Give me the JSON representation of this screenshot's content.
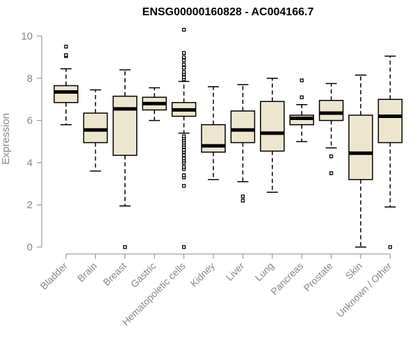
{
  "chart_data": {
    "type": "box",
    "title": "ENSG00000160828 - AC004166.7",
    "xlabel": "",
    "ylabel": "Expression",
    "ylim": [
      0,
      10
    ],
    "yticks": [
      0,
      2,
      4,
      6,
      8,
      10
    ],
    "grid": false,
    "colors": {
      "box_fill": "#ede6cf",
      "stroke": "#000000",
      "axis": "#888888"
    },
    "categories": [
      "Bladder",
      "Brain",
      "Breast",
      "Gastric",
      "Hematopoietic cells",
      "Kidney",
      "Liver",
      "Lung",
      "Pancreas",
      "Prostate",
      "Skin",
      "Unknown / Other"
    ],
    "boxes": [
      {
        "category": "Bladder",
        "whisker_low": 5.8,
        "q1": 6.85,
        "median": 7.35,
        "q3": 7.65,
        "whisker_high": 8.45,
        "outliers": [
          9.05,
          9.1,
          9.5
        ]
      },
      {
        "category": "Brain",
        "whisker_low": 3.6,
        "q1": 4.95,
        "median": 5.55,
        "q3": 6.35,
        "whisker_high": 7.45,
        "outliers": []
      },
      {
        "category": "Breast",
        "whisker_low": 1.95,
        "q1": 4.35,
        "median": 6.55,
        "q3": 7.15,
        "whisker_high": 8.4,
        "outliers": [
          0
        ]
      },
      {
        "category": "Gastric",
        "whisker_low": 6.0,
        "q1": 6.5,
        "median": 6.8,
        "q3": 7.1,
        "whisker_high": 7.55,
        "outliers": []
      },
      {
        "category": "Hematopoietic cells",
        "whisker_low": 5.4,
        "q1": 6.2,
        "median": 6.5,
        "q3": 6.85,
        "whisker_high": 7.85,
        "outliers": [
          0,
          2.9,
          3.3,
          3.4,
          3.7,
          3.8,
          4.0,
          4.1,
          4.2,
          4.35,
          4.5,
          4.6,
          4.75,
          4.85,
          4.95,
          5.05,
          5.15,
          5.25,
          7.95,
          8.05,
          8.2,
          8.3,
          8.5,
          8.65,
          8.85,
          9.0,
          9.2,
          10.3
        ]
      },
      {
        "category": "Kidney",
        "whisker_low": 3.2,
        "q1": 4.5,
        "median": 4.8,
        "q3": 5.8,
        "whisker_high": 7.6,
        "outliers": []
      },
      {
        "category": "Liver",
        "whisker_low": 3.1,
        "q1": 4.95,
        "median": 5.55,
        "q3": 6.45,
        "whisker_high": 7.7,
        "outliers": [
          2.2,
          2.4
        ]
      },
      {
        "category": "Lung",
        "whisker_low": 2.6,
        "q1": 4.55,
        "median": 5.4,
        "q3": 6.9,
        "whisker_high": 8.0,
        "outliers": []
      },
      {
        "category": "Pancreas",
        "whisker_low": 5.0,
        "q1": 5.8,
        "median": 6.1,
        "q3": 6.25,
        "whisker_high": 6.75,
        "outliers": [
          7.1,
          7.9
        ]
      },
      {
        "category": "Prostate",
        "whisker_low": 4.7,
        "q1": 6.0,
        "median": 6.35,
        "q3": 6.95,
        "whisker_high": 7.75,
        "outliers": [
          3.5,
          4.3
        ]
      },
      {
        "category": "Skin",
        "whisker_low": 0.0,
        "q1": 3.2,
        "median": 4.45,
        "q3": 6.25,
        "whisker_high": 8.15,
        "outliers": []
      },
      {
        "category": "Unknown / Other",
        "whisker_low": 1.9,
        "q1": 4.95,
        "median": 6.2,
        "q3": 7.0,
        "whisker_high": 9.05,
        "outliers": [
          0
        ]
      }
    ]
  }
}
